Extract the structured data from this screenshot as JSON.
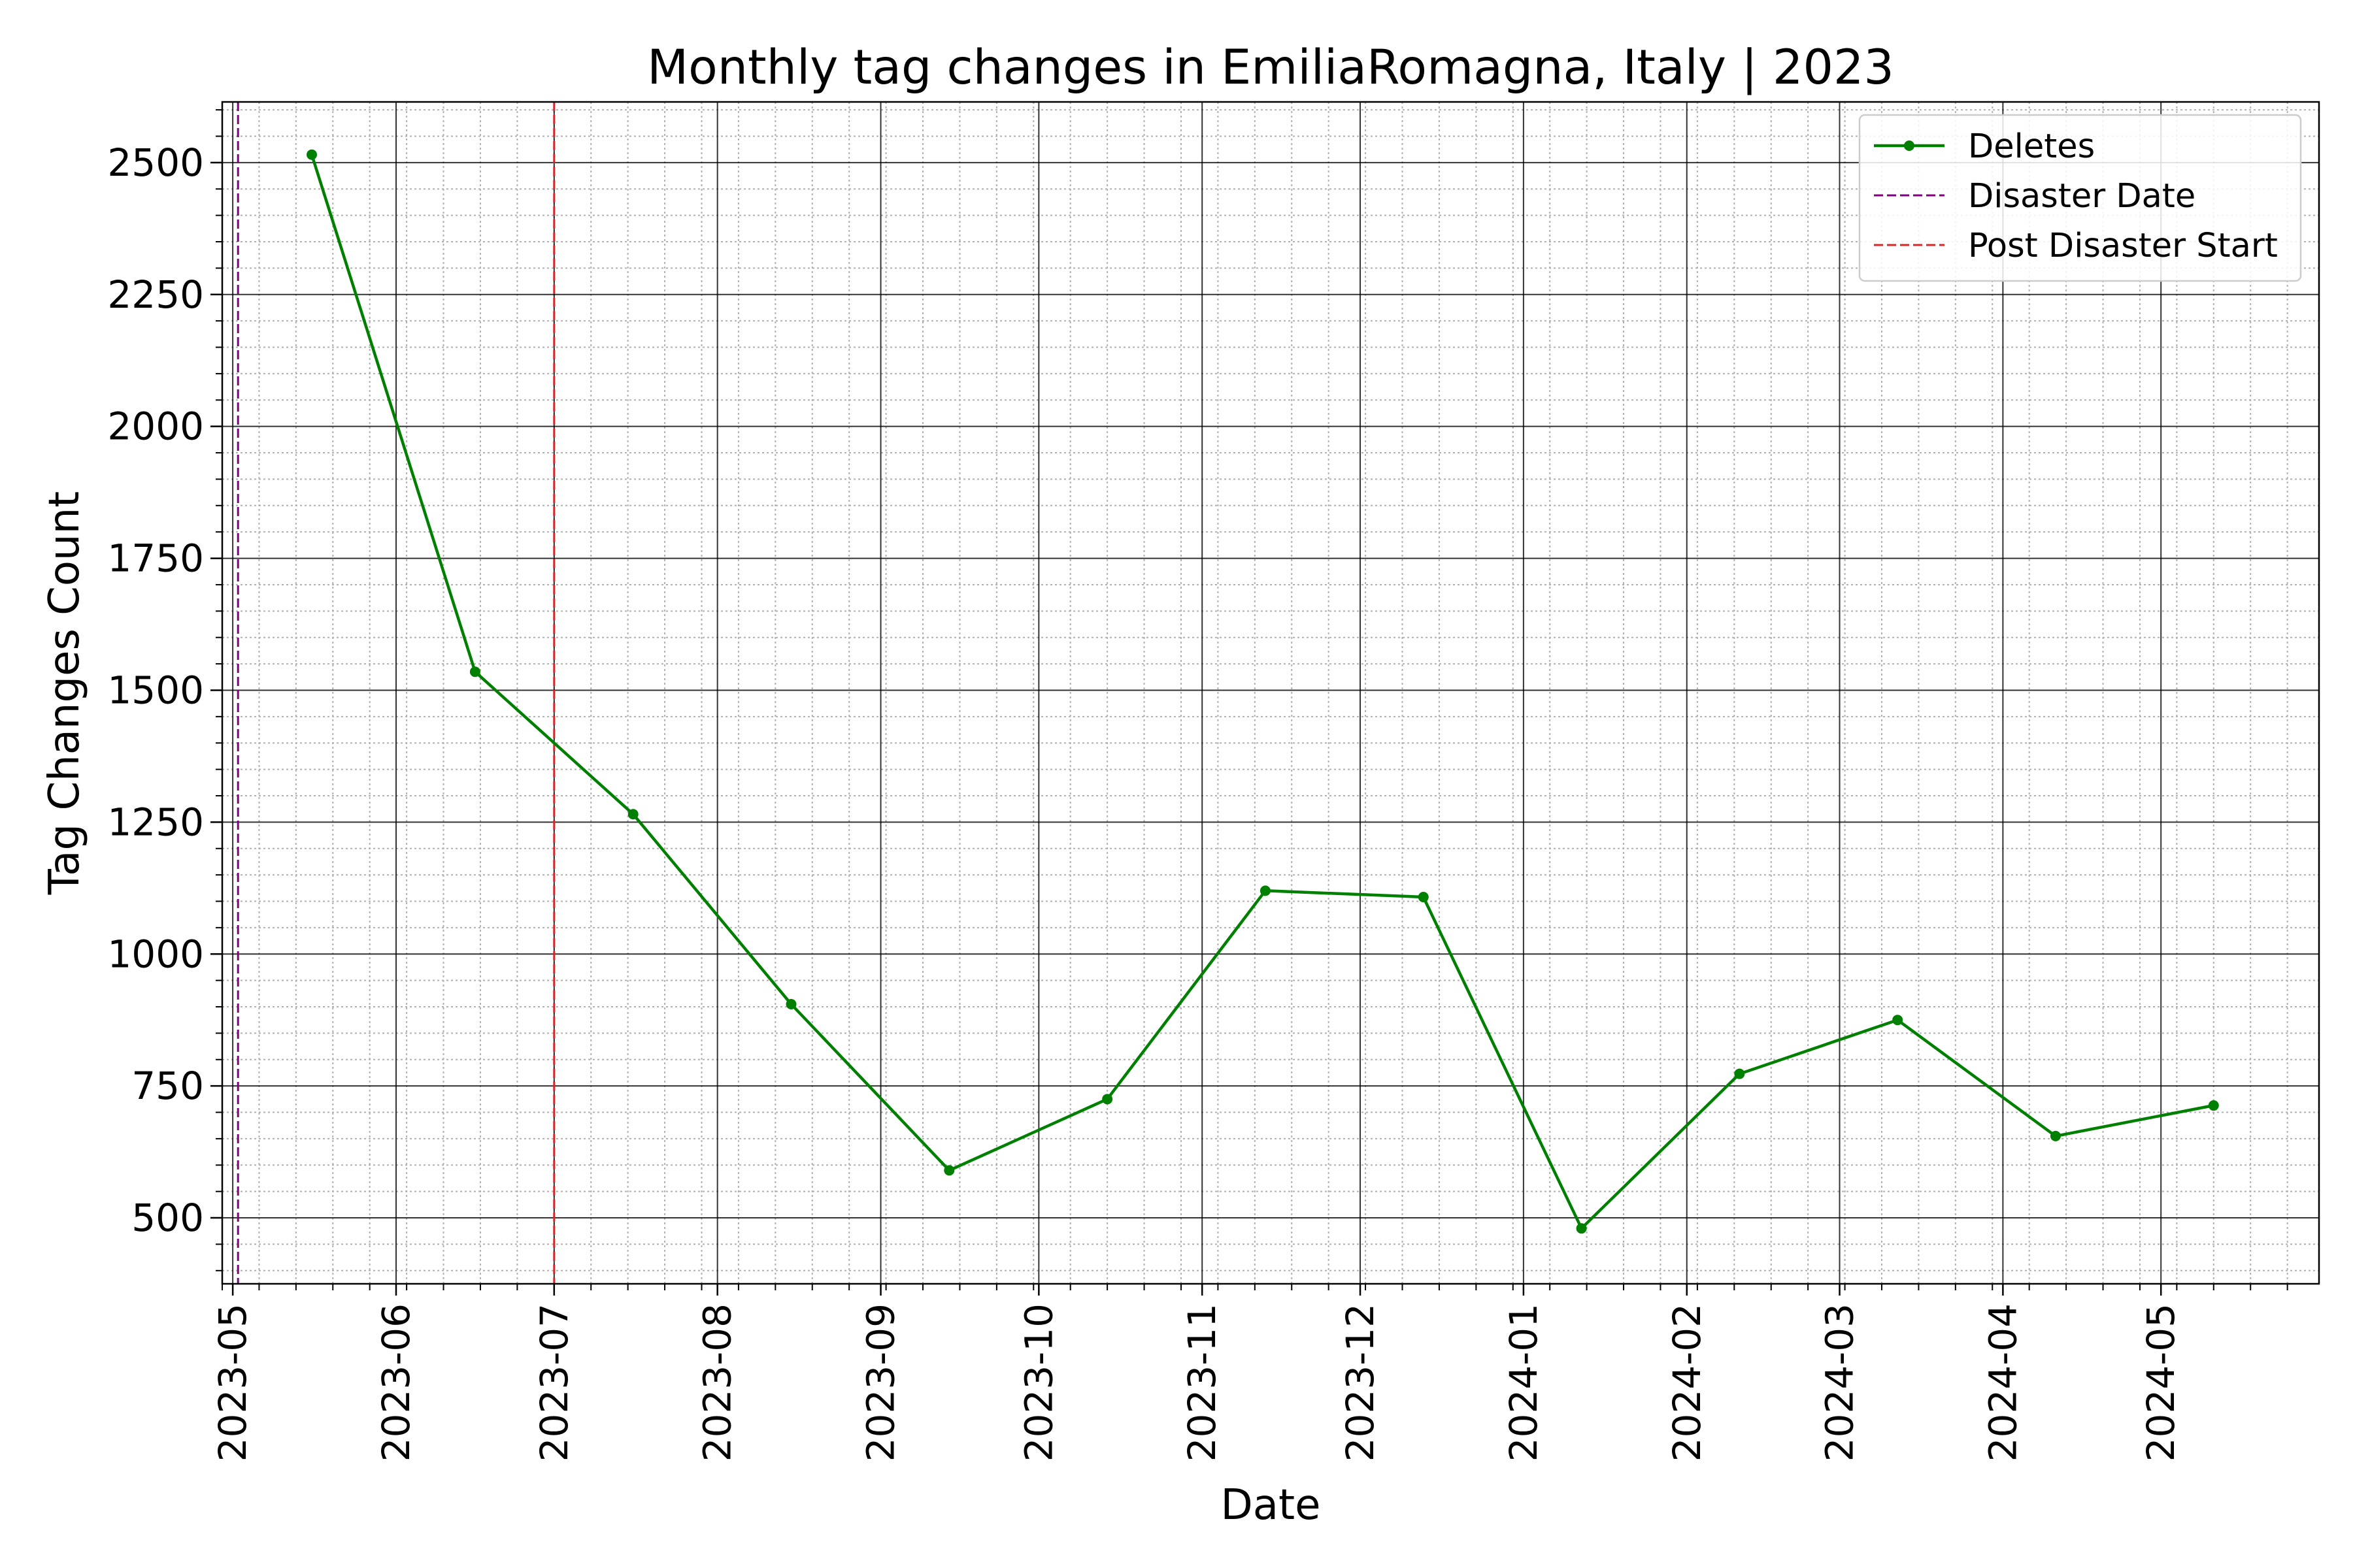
{
  "chart_data": {
    "type": "line",
    "title": "Monthly tag changes in EmiliaRomagna, Italy | 2023",
    "xlabel": "Date",
    "ylabel": "Tag Changes Count",
    "x_ticks": [
      "2023-05",
      "2023-06",
      "2023-07",
      "2023-08",
      "2023-09",
      "2023-10",
      "2023-11",
      "2023-12",
      "2024-01",
      "2024-02",
      "2024-03",
      "2024-04",
      "2024-05"
    ],
    "x_range": [
      "2023-04-29",
      "2024-05-31"
    ],
    "y_ticks": [
      500,
      750,
      1000,
      1250,
      1500,
      1750,
      2000,
      2250,
      2500
    ],
    "ylim": [
      375,
      2615
    ],
    "grid": {
      "major": true,
      "minor": true
    },
    "legend_position": "top-right",
    "series": [
      {
        "name": "Deletes",
        "color": "#008000",
        "marker": "circle",
        "points": [
          {
            "x": "2023-05-16",
            "y": 2515
          },
          {
            "x": "2023-06-16",
            "y": 1535
          },
          {
            "x": "2023-07-16",
            "y": 1265
          },
          {
            "x": "2023-08-15",
            "y": 905
          },
          {
            "x": "2023-09-14",
            "y": 590
          },
          {
            "x": "2023-10-14",
            "y": 725
          },
          {
            "x": "2023-11-13",
            "y": 1120
          },
          {
            "x": "2023-12-13",
            "y": 1108
          },
          {
            "x": "2024-01-12",
            "y": 480
          },
          {
            "x": "2024-02-11",
            "y": 773
          },
          {
            "x": "2024-03-12",
            "y": 875
          },
          {
            "x": "2024-04-11",
            "y": 655
          },
          {
            "x": "2024-05-11",
            "y": 713
          }
        ]
      }
    ],
    "vlines": [
      {
        "name": "Disaster Date",
        "x": "2023-05-02",
        "color": "#800080",
        "style": "dashed"
      },
      {
        "name": "Post Disaster Start",
        "x": "2023-07-01",
        "color": "#d62728",
        "style": "dashed"
      }
    ]
  }
}
